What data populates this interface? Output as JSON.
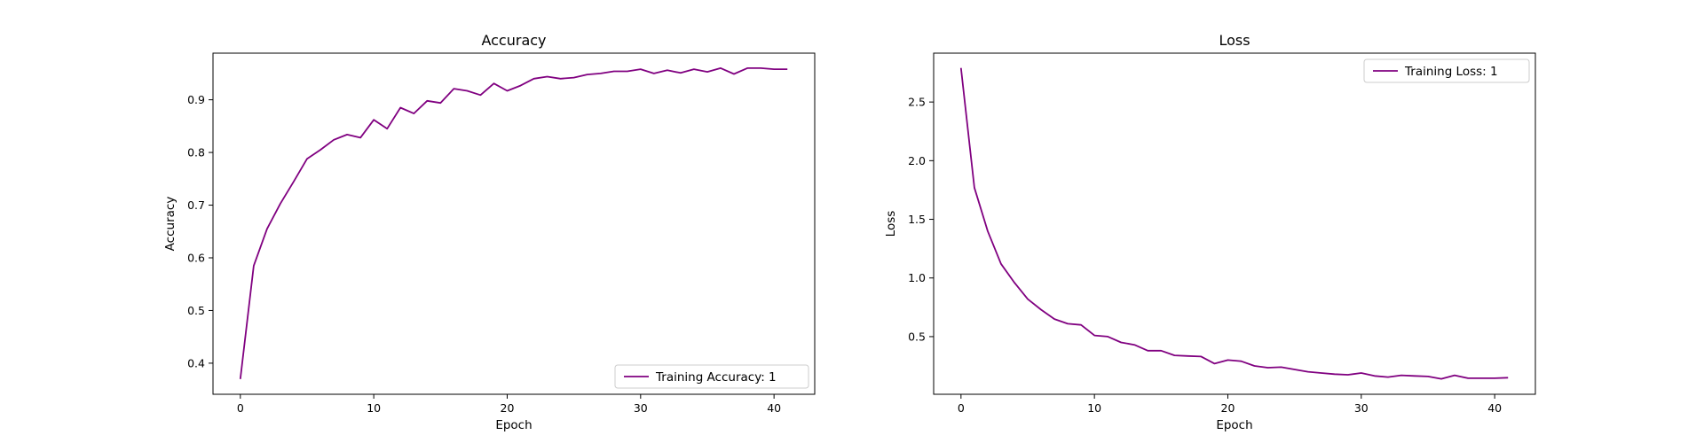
{
  "chart_data": [
    {
      "type": "line",
      "title": "Accuracy",
      "xlabel": "Epoch",
      "ylabel": "Accuracy",
      "xlim": [
        -2.05,
        43.05
      ],
      "ylim": [
        0.341,
        0.9885
      ],
      "xticks": [
        0,
        10,
        20,
        30,
        40
      ],
      "yticks": [
        0.4,
        0.5,
        0.6,
        0.7,
        0.8,
        0.9
      ],
      "grid": false,
      "legend_position": "lower-right",
      "series": [
        {
          "name": "Training Accuracy: 1",
          "color": "#800080",
          "x": [
            0,
            1,
            2,
            3,
            4,
            5,
            6,
            7,
            8,
            9,
            10,
            11,
            12,
            13,
            14,
            15,
            16,
            17,
            18,
            19,
            20,
            21,
            22,
            23,
            24,
            25,
            26,
            27,
            28,
            29,
            30,
            31,
            32,
            33,
            34,
            35,
            36,
            37,
            38,
            39,
            40,
            41
          ],
          "values": [
            0.37,
            0.585,
            0.655,
            0.703,
            0.745,
            0.788,
            0.805,
            0.824,
            0.834,
            0.828,
            0.862,
            0.845,
            0.885,
            0.874,
            0.898,
            0.894,
            0.921,
            0.917,
            0.909,
            0.931,
            0.917,
            0.927,
            0.94,
            0.944,
            0.94,
            0.942,
            0.948,
            0.95,
            0.954,
            0.954,
            0.958,
            0.95,
            0.956,
            0.951,
            0.958,
            0.953,
            0.96,
            0.949,
            0.96,
            0.96,
            0.958,
            0.958
          ]
        }
      ]
    },
    {
      "type": "line",
      "title": "Loss",
      "xlabel": "Epoch",
      "ylabel": "Loss",
      "xlim": [
        -2.05,
        43.05
      ],
      "ylim": [
        0.0085,
        2.9165
      ],
      "xticks": [
        0,
        10,
        20,
        30,
        40
      ],
      "yticks": [
        0.5,
        1.0,
        1.5,
        2.0,
        2.5
      ],
      "ytick_labels": [
        "0.5",
        "1.0",
        "1.5",
        "2.0",
        "2.5"
      ],
      "grid": false,
      "legend_position": "upper-right",
      "series": [
        {
          "name": "Training Loss: 1",
          "color": "#800080",
          "x": [
            0,
            1,
            2,
            3,
            4,
            5,
            6,
            7,
            8,
            9,
            10,
            11,
            12,
            13,
            14,
            15,
            16,
            17,
            18,
            19,
            20,
            21,
            22,
            23,
            24,
            25,
            26,
            27,
            28,
            29,
            30,
            31,
            32,
            33,
            34,
            35,
            36,
            37,
            38,
            39,
            40,
            41
          ],
          "values": [
            2.79,
            1.77,
            1.4,
            1.12,
            0.96,
            0.82,
            0.73,
            0.65,
            0.61,
            0.6,
            0.51,
            0.5,
            0.45,
            0.43,
            0.38,
            0.38,
            0.34,
            0.335,
            0.33,
            0.27,
            0.3,
            0.29,
            0.25,
            0.235,
            0.24,
            0.22,
            0.2,
            0.19,
            0.18,
            0.175,
            0.19,
            0.165,
            0.155,
            0.17,
            0.165,
            0.16,
            0.14,
            0.17,
            0.145,
            0.145,
            0.145,
            0.15
          ]
        }
      ]
    }
  ]
}
